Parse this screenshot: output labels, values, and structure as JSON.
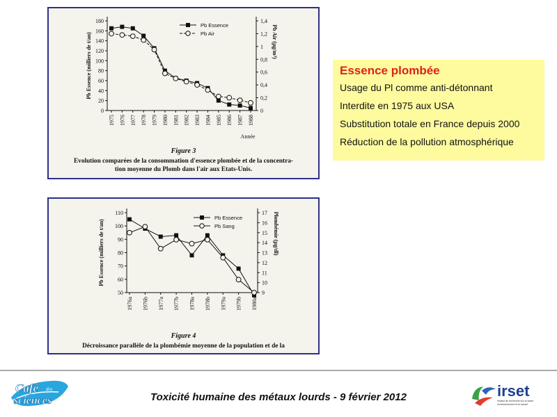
{
  "slide": {
    "info_title": "Essence plombée",
    "info_items": [
      "Usage du Pl comme anti-détonnant",
      "Interdite en 1975 aux USA",
      "Substitution totale en France depuis 2000",
      "Réduction de la pollution atmosphérique"
    ],
    "footer": "Toxicité humaine des métaux lourds - 9 février 2012",
    "logo_left_text": [
      "Café",
      "des",
      "sciences"
    ],
    "logo_right_text": "irset",
    "logo_right_subtext": [
      "Institut de recherche sur la santé",
      "l'environnement et le travail"
    ]
  },
  "chart_data": [
    {
      "type": "line",
      "figure_label": "Figure 3",
      "caption": "Evolution comparées de la consommation d'essence plombée et de la concentration moyenne du Plomb dans l'air aux Etats-Unis.",
      "caption_lines": [
        "Evolution comparées de la consommation d'essence plombée et de la concentra-",
        "tion moyenne du Plomb dans l'air aux Etats-Unis."
      ],
      "xlabel": "Année",
      "ylabel": "Pb Essence (milliers de t/an)",
      "y2label": "Pb Air (µg/m³)",
      "categories": [
        "1975",
        "1976",
        "1977",
        "1978",
        "1979",
        "1980",
        "1981",
        "1982",
        "1983",
        "1984",
        "1985",
        "1986",
        "1987",
        "1988"
      ],
      "ylim": [
        0,
        180
      ],
      "yticks": [
        0,
        20,
        40,
        60,
        80,
        100,
        120,
        140,
        160,
        180
      ],
      "y2lim": [
        0,
        1.4
      ],
      "y2ticks": [
        0,
        0.2,
        0.4,
        0.6,
        0.8,
        1,
        1.2,
        1.4
      ],
      "y2tick_labels": [
        "0",
        "0,2",
        "0,4",
        "0,6",
        "0,8",
        "1",
        "1,2",
        "1,4"
      ],
      "legend_position": "top-right",
      "series": [
        {
          "name": "Pb Essence",
          "axis": "left",
          "marker": "filled-square",
          "values": [
            165,
            168,
            165,
            150,
            125,
            80,
            65,
            60,
            55,
            45,
            20,
            12,
            10,
            5
          ]
        },
        {
          "name": "Pb Air",
          "axis": "right",
          "marker": "open-circle",
          "dashed": true,
          "values": [
            1.2,
            1.18,
            1.16,
            1.1,
            0.95,
            0.58,
            0.5,
            0.45,
            0.4,
            0.32,
            0.22,
            0.2,
            0.16,
            0.12
          ]
        }
      ]
    },
    {
      "type": "line",
      "figure_label": "Figure 4",
      "caption": "Décroissance parallèle de la plombémie moyenne de la population et de la",
      "caption_lines": [
        "Décroissance parallèle de la plombémie moyenne de la population et de la"
      ],
      "xlabel": "",
      "ylabel": "Pb Essence (milliers de t/an)",
      "y2label": "Plombémie (µg/dl)",
      "categories": [
        "1976a",
        "1976b",
        "1977a",
        "1977b",
        "1978a",
        "1978b",
        "1979a",
        "1979b",
        "1980a"
      ],
      "ylim": [
        50,
        110
      ],
      "yticks": [
        50,
        60,
        70,
        80,
        90,
        100,
        110
      ],
      "y2lim": [
        9,
        17
      ],
      "y2ticks": [
        9,
        10,
        11,
        12,
        13,
        14,
        15,
        16,
        17
      ],
      "legend_position": "top-right",
      "series": [
        {
          "name": "Pb Essence",
          "axis": "left",
          "marker": "filled-square",
          "x_offsets": [
            0,
            1,
            2,
            3,
            4,
            5,
            6,
            7,
            8
          ],
          "values": [
            105,
            98,
            92,
            93,
            78,
            93,
            78,
            68,
            48
          ]
        },
        {
          "name": "Pb Sang",
          "axis": "right",
          "marker": "open-circle",
          "values": [
            15.0,
            15.6,
            13.4,
            14.3,
            13.9,
            14.3,
            12.5,
            10.3,
            9.0
          ]
        }
      ]
    }
  ]
}
